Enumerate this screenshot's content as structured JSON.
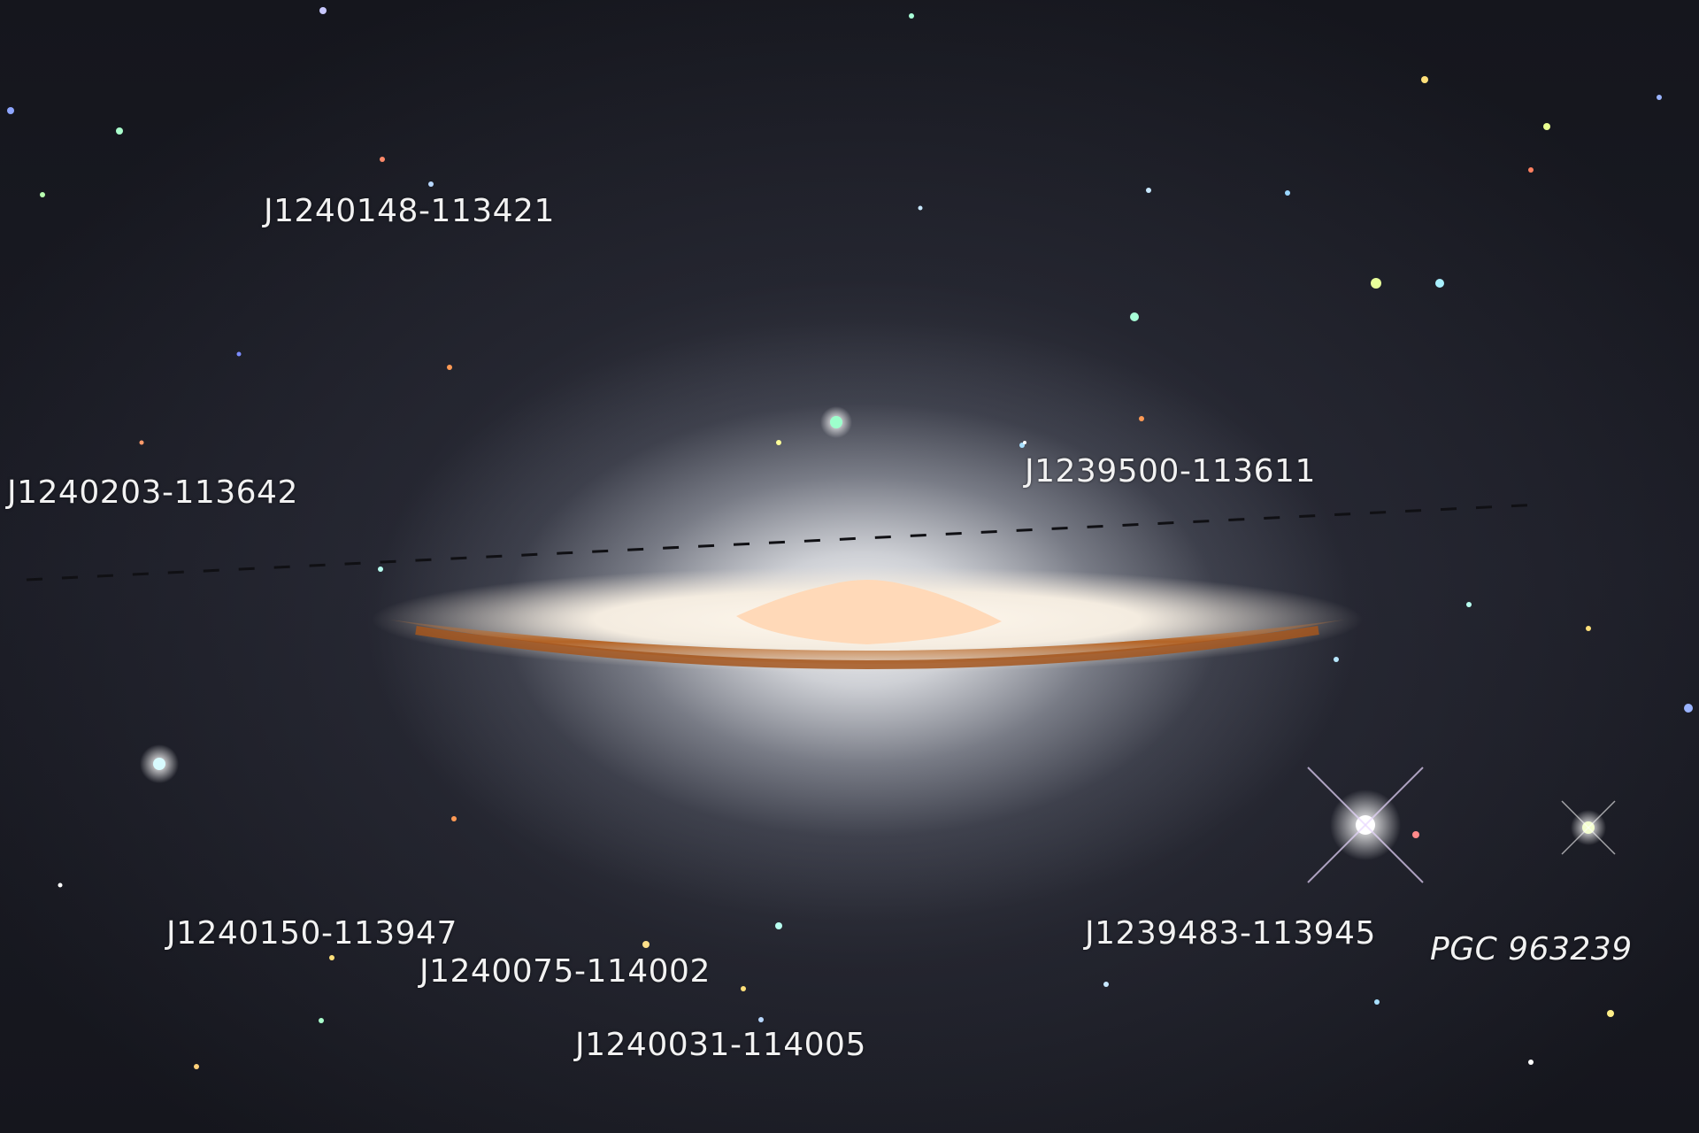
{
  "labels": {
    "j1240148": "J1240148-113421",
    "j1240203": "J1240203-113642",
    "j1239500": "J1239500-113611",
    "j1240150": "J1240150-113947",
    "j1240075": "J1240075-114002",
    "j1240031": "J1240031-114005",
    "j1239483": "J1239483-113945",
    "pgc963239": "PGC 963239"
  },
  "colors": {
    "sky": "#15161d",
    "halo": "#e6e8ec",
    "dust_lane": "#b9692a",
    "core": "#ffd9b8",
    "label_text": "#f2f2f2"
  }
}
